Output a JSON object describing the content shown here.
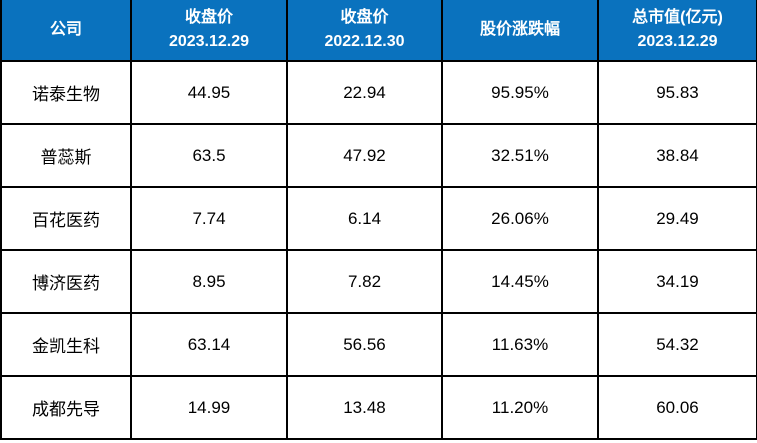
{
  "colors": {
    "header_bg": "#0A72BE",
    "header_text": "#FFFFFF",
    "body_text": "#000000",
    "border": "#000000"
  },
  "table": {
    "header": {
      "columns": [
        {
          "line1": "公司",
          "line2": ""
        },
        {
          "line1": "收盘价",
          "line2": "2023.12.29"
        },
        {
          "line1": "收盘价",
          "line2": "2022.12.30"
        },
        {
          "line1": "股价涨跌幅",
          "line2": ""
        },
        {
          "line1": "总市值(亿元)",
          "line2": "2023.12.29"
        }
      ]
    },
    "rows": [
      {
        "company": "诺泰生物",
        "close_2023": "44.95",
        "close_2022": "22.94",
        "change": "95.95%",
        "market_cap": "95.83"
      },
      {
        "company": "普蕊斯",
        "close_2023": "63.5",
        "close_2022": "47.92",
        "change": "32.51%",
        "market_cap": "38.84"
      },
      {
        "company": "百花医药",
        "close_2023": "7.74",
        "close_2022": "6.14",
        "change": "26.06%",
        "market_cap": "29.49"
      },
      {
        "company": "博济医药",
        "close_2023": "8.95",
        "close_2022": "7.82",
        "change": "14.45%",
        "market_cap": "34.19"
      },
      {
        "company": "金凯生科",
        "close_2023": "63.14",
        "close_2022": "56.56",
        "change": "11.63%",
        "market_cap": "54.32"
      },
      {
        "company": "成都先导",
        "close_2023": "14.99",
        "close_2022": "13.48",
        "change": "11.20%",
        "market_cap": "60.06"
      }
    ]
  },
  "chart_data": {
    "type": "table",
    "columns": [
      "公司",
      "收盘价 2023.12.29",
      "收盘价 2022.12.30",
      "股价涨跌幅",
      "总市值(亿元) 2023.12.29"
    ],
    "rows": [
      [
        "诺泰生物",
        44.95,
        22.94,
        "95.95%",
        95.83
      ],
      [
        "普蕊斯",
        63.5,
        47.92,
        "32.51%",
        38.84
      ],
      [
        "百花医药",
        7.74,
        6.14,
        "26.06%",
        29.49
      ],
      [
        "博济医药",
        8.95,
        7.82,
        "14.45%",
        34.19
      ],
      [
        "金凯生科",
        63.14,
        56.56,
        "11.63%",
        54.32
      ],
      [
        "成都先导",
        14.99,
        13.48,
        "11.20%",
        60.06
      ]
    ]
  }
}
